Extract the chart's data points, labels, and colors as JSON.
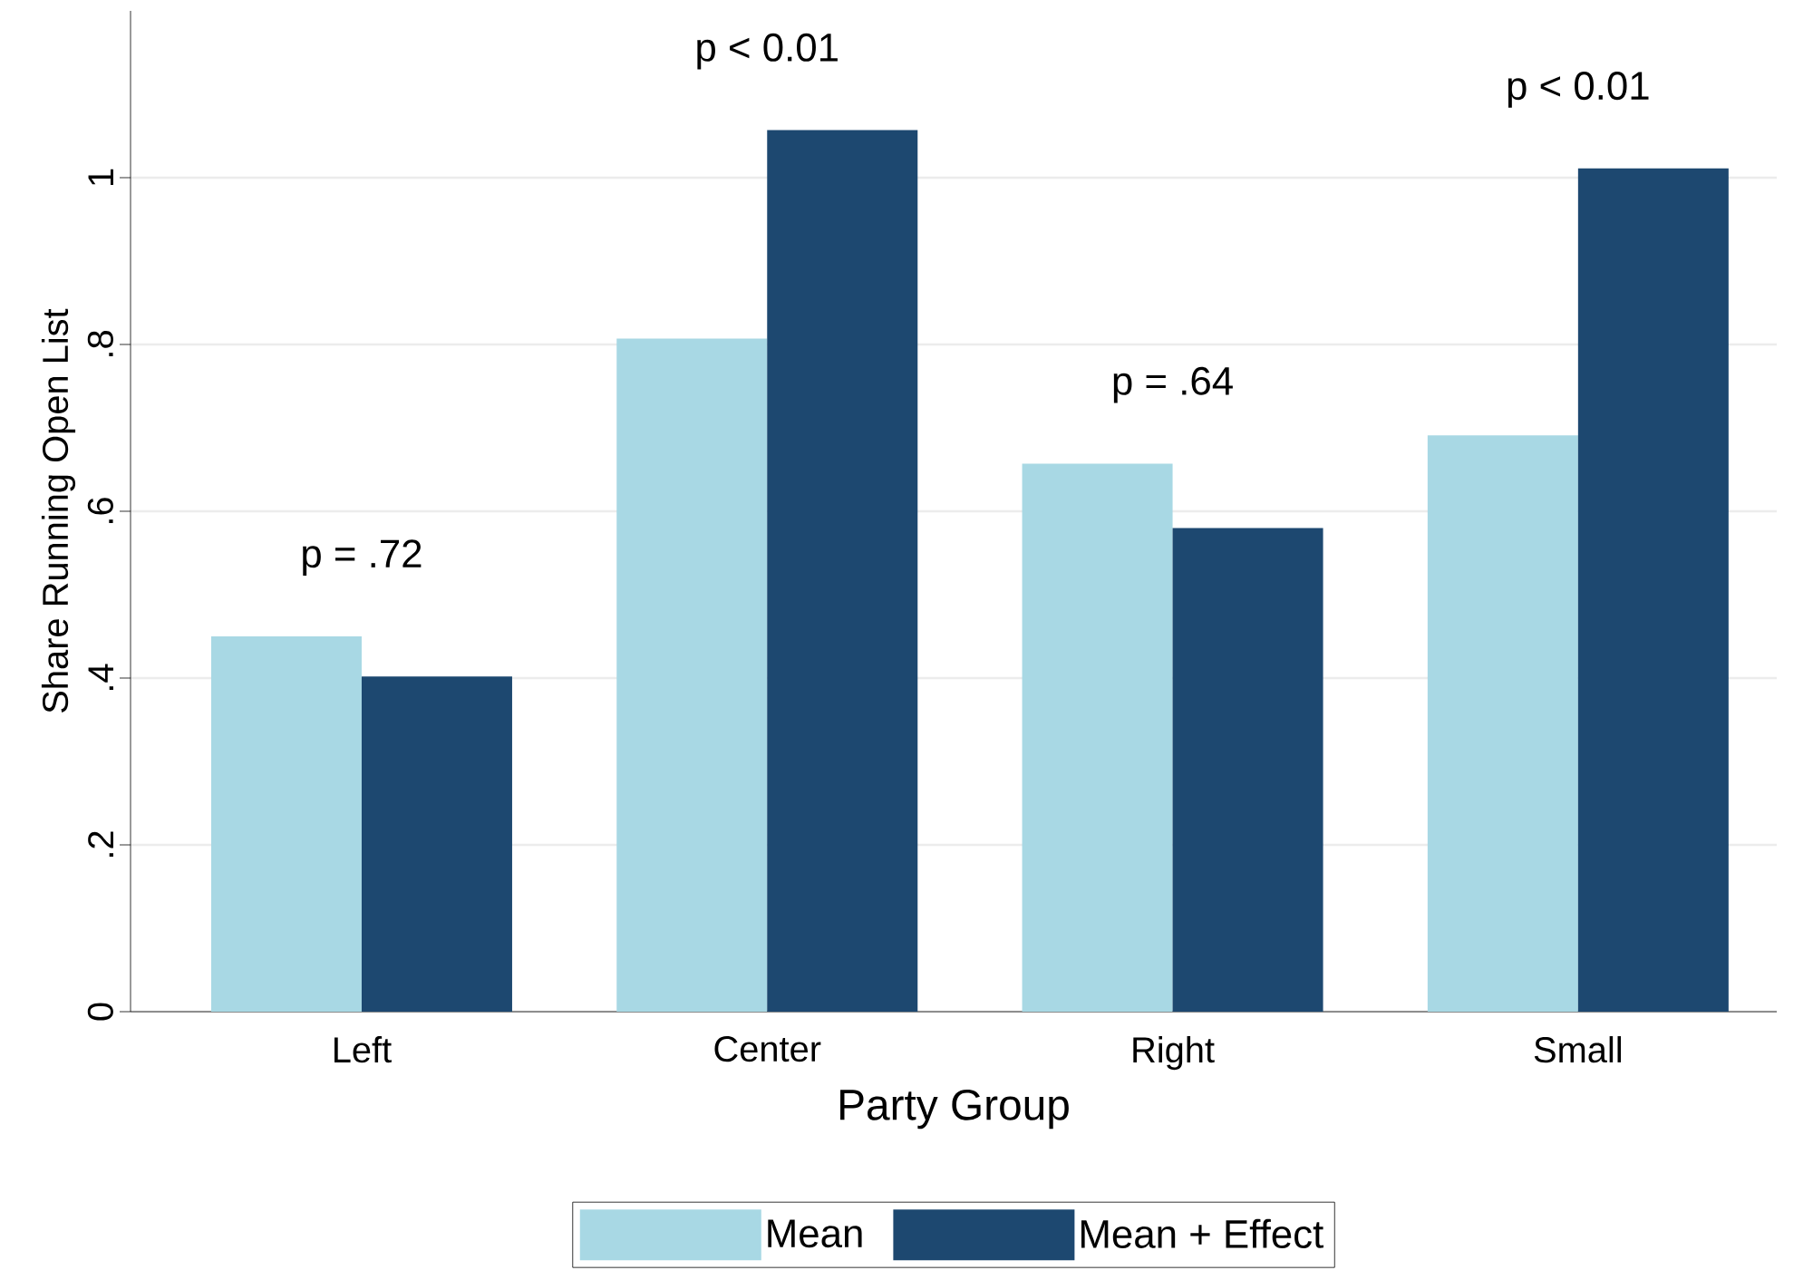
{
  "chart_data": {
    "type": "bar",
    "categories": [
      "Left",
      "Center",
      "Right",
      "Small"
    ],
    "series": [
      {
        "name": "Mean",
        "color": "#a8d8e4",
        "values": [
          0.45,
          0.807,
          0.657,
          0.691
        ]
      },
      {
        "name": "Mean + Effect",
        "color": "#1d4870",
        "values": [
          0.402,
          1.057,
          0.58,
          1.011
        ]
      }
    ],
    "xlabel": "Party Group",
    "ylabel": "Share Running Open List",
    "ylim": [
      0,
      1.2
    ],
    "yticks": [
      0,
      {
        "value": 0.2,
        "label": ".2"
      },
      {
        "value": 0.4,
        "label": ".4"
      },
      {
        "value": 0.6,
        "label": ".6"
      },
      {
        "value": 0.8,
        "label": ".8"
      },
      1
    ],
    "grid": "y",
    "legend": "bottom",
    "annotations": [
      "p = .72",
      "p < 0.01",
      "p = .64",
      "p < 0.01"
    ]
  }
}
